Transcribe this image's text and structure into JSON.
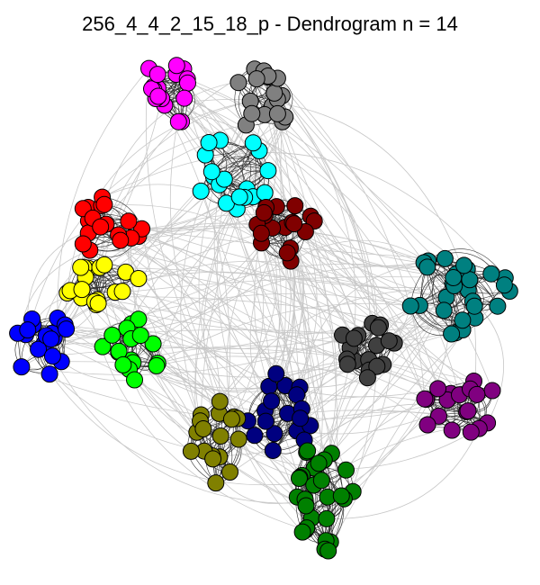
{
  "title": "256_4_4_2_15_18_p - Dendrogram n = 14",
  "graph": {
    "edge_color_inter": "#c8c8c8",
    "edge_color_intra": "#303030",
    "node_stroke": "#000000",
    "clusters": [
      {
        "color": "#ff00ff",
        "label": "magenta"
      },
      {
        "color": "#808080",
        "label": "gray"
      },
      {
        "color": "#00ffff",
        "label": "cyan"
      },
      {
        "color": "#800000",
        "label": "maroon"
      },
      {
        "color": "#ff0000",
        "label": "red"
      },
      {
        "color": "#ffff00",
        "label": "yellow"
      },
      {
        "color": "#0000ff",
        "label": "blue"
      },
      {
        "color": "#00ff00",
        "label": "lime"
      },
      {
        "color": "#008080",
        "label": "teal"
      },
      {
        "color": "#404040",
        "label": "dark-gray"
      },
      {
        "color": "#800080",
        "label": "purple"
      },
      {
        "color": "#000080",
        "label": "navy"
      },
      {
        "color": "#808000",
        "label": "olive"
      },
      {
        "color": "#008000",
        "label": "green"
      }
    ]
  }
}
